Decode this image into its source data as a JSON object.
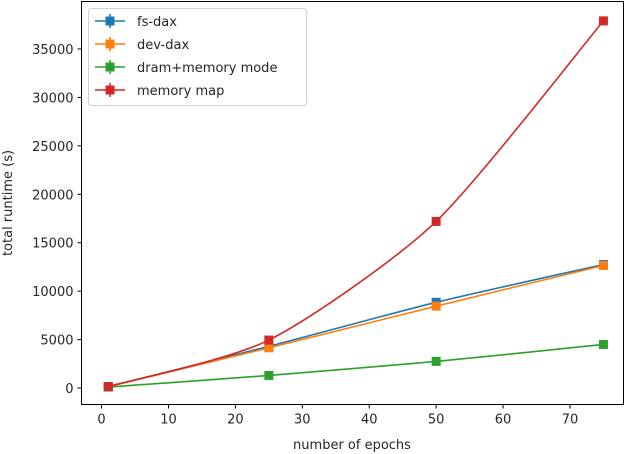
{
  "chart_data": {
    "type": "line",
    "title": "",
    "xlabel": "number of epochs",
    "ylabel": "total runtime (s)",
    "x": [
      1,
      25,
      50,
      75
    ],
    "xlim": [
      -3,
      78
    ],
    "ylim": [
      -1700,
      39900
    ],
    "xticks": [
      0,
      10,
      20,
      30,
      40,
      50,
      60,
      70
    ],
    "yticks": [
      0,
      5000,
      10000,
      15000,
      20000,
      25000,
      30000,
      35000
    ],
    "grid": false,
    "legend_position": "upper left",
    "series": [
      {
        "name": "fs-dax",
        "color": "#1f77b4",
        "values": [
          150,
          4300,
          8850,
          12750
        ]
      },
      {
        "name": "dev-dax",
        "color": "#ff7f0e",
        "values": [
          150,
          4150,
          8450,
          12650
        ]
      },
      {
        "name": "dram+memory mode",
        "color": "#2ca02c",
        "values": [
          100,
          1300,
          2750,
          4500
        ]
      },
      {
        "name": "memory map",
        "color": "#d62728",
        "values": [
          150,
          4950,
          17200,
          37900
        ]
      }
    ]
  }
}
